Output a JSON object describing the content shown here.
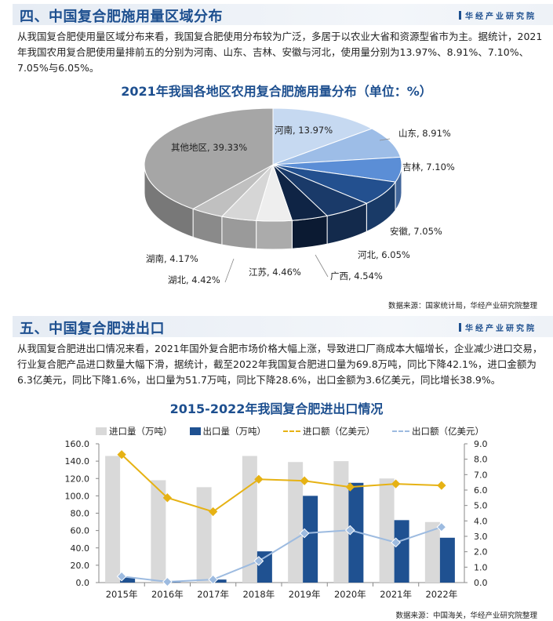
{
  "section4": {
    "title": "四、中国复合肥施用量区域分布",
    "logo": "华经产业研究院",
    "paragraph": "从我国复合肥使用量区域分布来看，我国复合肥使用分布较为广泛，多居于以农业大省和资源型省市为主。据统计，2021年我国农用复合肥使用量排前五的分别为河南、山东、吉林、安徽与河北，使用量分别为13.97%、8.91%、7.10%、7.05%与6.05%。",
    "source": "数据来源：国家统计局，华经产业研究院整理"
  },
  "section5": {
    "title": "五、中国复合肥进出口",
    "logo": "华经产业研究院",
    "paragraph": "从我国复合肥进出口情况来看，2021年国外复合肥市场价格大幅上涨，导致进口厂商成本大幅增长，企业减少进口交易，行业复合肥产品进口数量大幅下滑，据统计，截至2022年我国复合肥进口量为69.8万吨，同比下降42.1%，进口金额为6.3亿美元，同比下降1.6%，出口量为51.7万吨，同比下降28.6%，出口金额为3.6亿美元，同比增长38.9%。",
    "source": "数据来源：中国海关，华经产业研究院整理"
  },
  "chart_data": [
    {
      "type": "pie",
      "style": "3d",
      "title": "2021年我国各地区农用复合肥施用量分布（单位：%）",
      "slices": [
        {
          "label": "河南",
          "value": 13.97,
          "text": "河南, 13.97%",
          "color": "#c6d9f1"
        },
        {
          "label": "山东",
          "value": 8.91,
          "text": "山东, 8.91%",
          "color": "#9dbde7"
        },
        {
          "label": "吉林",
          "value": 7.1,
          "text": "吉林, 7.10%",
          "color": "#5b8ed6"
        },
        {
          "label": "安徽",
          "value": 7.05,
          "text": "安徽, 7.05%",
          "color": "#23508f"
        },
        {
          "label": "河北",
          "value": 6.05,
          "text": "河北, 6.05%",
          "color": "#1a3a69"
        },
        {
          "label": "广西",
          "value": 4.54,
          "text": "广西, 4.54%",
          "color": "#0f2445"
        },
        {
          "label": "江苏",
          "value": 4.46,
          "text": "江苏, 4.46%",
          "color": "#eeeeee"
        },
        {
          "label": "湖北",
          "value": 4.42,
          "text": "湖北, 4.42%",
          "color": "#d6d6d6"
        },
        {
          "label": "湖南",
          "value": 4.17,
          "text": "湖南, 4.17%",
          "color": "#c0c0c0"
        },
        {
          "label": "其他地区",
          "value": 39.33,
          "text": "其他地区, 39.33%",
          "color": "#a6a6a6"
        }
      ]
    },
    {
      "type": "bar+line",
      "title": "2015-2022年我国复合肥进出口情况",
      "categories": [
        "2015年",
        "2016年",
        "2017年",
        "2018年",
        "2019年",
        "2020年",
        "2021年",
        "2022年"
      ],
      "y_left": {
        "range": [
          0,
          160
        ],
        "ticks": [
          "0.0",
          "20.0",
          "40.0",
          "60.0",
          "80.0",
          "100.0",
          "120.0",
          "140.0",
          "160.0"
        ]
      },
      "y_right": {
        "range": [
          0,
          9
        ],
        "ticks": [
          "0.0",
          "1.0",
          "2.0",
          "3.0",
          "4.0",
          "5.0",
          "6.0",
          "7.0",
          "8.0",
          "9.0"
        ]
      },
      "legend_position": "top",
      "series": [
        {
          "name": "进口量（万吨）",
          "type": "bar",
          "axis": "left",
          "color": "#d9d9d9",
          "values": [
            146,
            118,
            110,
            146,
            139,
            140,
            120,
            69.8
          ]
        },
        {
          "name": "出口量（万吨）",
          "type": "bar",
          "axis": "left",
          "color": "#1f5191",
          "values": [
            6,
            0.5,
            3.5,
            36,
            100,
            115,
            72,
            51.7
          ]
        },
        {
          "name": "进口额（亿美元）",
          "type": "line",
          "axis": "right",
          "color": "#e6b214",
          "values": [
            8.3,
            5.5,
            4.6,
            6.7,
            6.6,
            6.2,
            6.4,
            6.3
          ]
        },
        {
          "name": "出口额（亿美元）",
          "type": "line",
          "axis": "right",
          "color": "#9dbbe0",
          "values": [
            0.4,
            0.05,
            0.2,
            1.4,
            3.2,
            3.4,
            2.6,
            3.6
          ]
        }
      ]
    }
  ]
}
